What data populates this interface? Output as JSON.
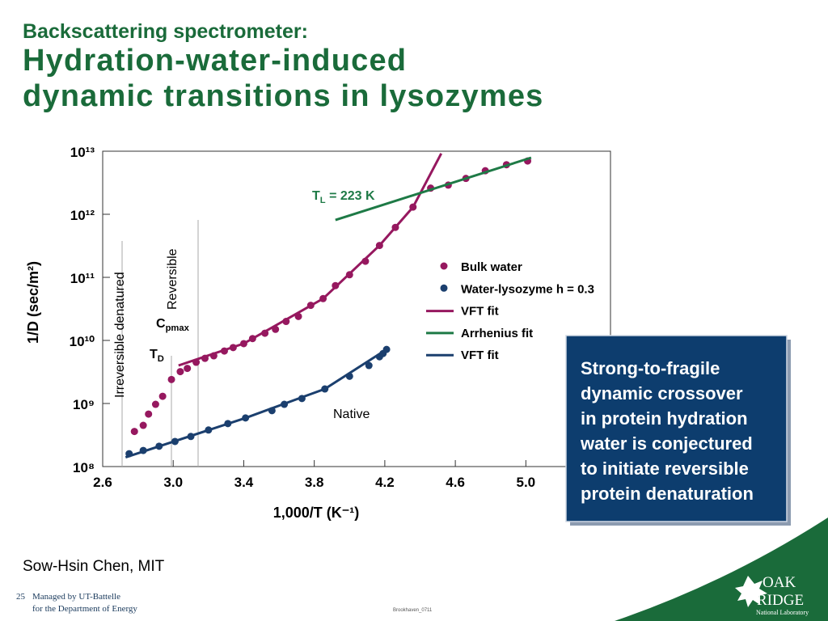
{
  "header": {
    "kicker": "Backscattering spectrometer:",
    "title_lines": [
      "Hydration-water-induced",
      "dynamic transitions in lysozymes"
    ]
  },
  "chart_data": {
    "type": "scatter",
    "log_y": true,
    "grid": false,
    "xlabel": "1,000/T (K⁻¹)",
    "ylabel": "1/D (sec/m²)",
    "xlim": [
      2.6,
      5.48
    ],
    "ylim": [
      100000000.0,
      10000000000000.0
    ],
    "xticks": [
      2.6,
      {
        "value": 3,
        "label": "3.0"
      },
      3.4,
      3.8,
      4.2,
      4.6,
      {
        "value": 5,
        "label": "5.0"
      }
    ],
    "yticks": [
      {
        "value": 100000000.0,
        "label": "10⁸"
      },
      {
        "value": 1000000000.0,
        "label": "10⁹"
      },
      {
        "value": 10000000000.0,
        "label": "10¹⁰"
      },
      {
        "value": 100000000000.0,
        "label": "10¹¹"
      },
      {
        "value": 1000000000000.0,
        "label": "10¹²"
      },
      {
        "value": 10000000000000.0,
        "label": "10¹³"
      }
    ],
    "legend": "right",
    "series": [
      {
        "name": "Bulk water",
        "color": "#96185f",
        "mode": "markers",
        "x": [
          2.78,
          2.83,
          2.86,
          2.9,
          2.94,
          2.99,
          3.04,
          3.08,
          3.13,
          3.18,
          3.23,
          3.29,
          3.34,
          3.4,
          3.45,
          3.52,
          3.58,
          3.64,
          3.71,
          3.78,
          3.85,
          3.92,
          4.0,
          4.09,
          4.17,
          4.26,
          4.36,
          4.46,
          4.56,
          4.66,
          4.77,
          4.89,
          5.01
        ],
        "values": [
          360000000.0,
          450000000.0,
          680000000.0,
          970000000.0,
          1300000000.0,
          2400000000.0,
          3200000000.0,
          3600000000.0,
          4500000000.0,
          5200000000.0,
          5700000000.0,
          6800000000.0,
          7700000000.0,
          8900000000.0,
          10700000000.0,
          13000000000.0,
          15000000000.0,
          20000000000.0,
          24000000000.0,
          36000000000.0,
          46000000000.0,
          74000000000.0,
          110000000000.0,
          180000000000.0,
          320000000000.0,
          620000000000.0,
          1300000000000.0,
          2600000000000.0,
          2900000000000.0,
          3700000000000.0,
          4900000000000.0,
          6100000000000.0,
          7000000000000.0
        ]
      },
      {
        "name": "Water-lysozyme h = 0.3",
        "color": "#1b3f6e",
        "mode": "markers",
        "x": [
          2.75,
          2.83,
          2.92,
          3.01,
          3.1,
          3.2,
          3.31,
          3.41,
          3.56,
          3.63,
          3.73,
          3.86,
          4.0,
          4.11,
          4.17,
          4.19,
          4.21
        ],
        "values": [
          160000000.0,
          180000000.0,
          210000000.0,
          250000000.0,
          300000000.0,
          380000000.0,
          480000000.0,
          590000000.0,
          770000000.0,
          970000000.0,
          1200000000.0,
          1700000000.0,
          2700000000.0,
          4000000000.0,
          5500000000.0,
          6200000000.0,
          7200000000.0
        ]
      },
      {
        "name": "VFT fit",
        "color": "#96185f",
        "mode": "lines",
        "x": [
          3.03,
          3.4,
          3.85,
          4.17,
          4.36,
          4.52
        ],
        "values": [
          4000000000.0,
          8900000000.0,
          46000000000.0,
          320000000000.0,
          1300000000000.0,
          9200000000000.0
        ]
      },
      {
        "name": "Arrhenius fit",
        "color": "#1e7a46",
        "mode": "lines",
        "x": [
          3.92,
          5.03
        ],
        "values": [
          810000000000.0,
          7900000000000.0
        ]
      },
      {
        "name": "VFT fit",
        "color": "#1b3f6e",
        "mode": "lines",
        "x": [
          2.73,
          3.41,
          3.86,
          4.21
        ],
        "values": [
          140000000.0,
          590000000.0,
          1700000000.0,
          7200000000.0
        ]
      }
    ],
    "annotations": [
      {
        "text": "T",
        "subscript": "L",
        "suffix": " = 223 K",
        "color": "#1e7a46"
      },
      {
        "text": "C",
        "subscript": "pmax"
      },
      {
        "text": "T",
        "subscript": "D"
      },
      {
        "text": "Reversible"
      },
      {
        "text": "Irreversible  denatured"
      },
      {
        "text": "Native"
      }
    ]
  },
  "callout": {
    "lines": [
      "Strong-to-fragile",
      "dynamic crossover",
      "in protein hydration",
      "water is conjectured",
      "to initiate reversible",
      "protein denaturation"
    ]
  },
  "credit": "Sow-Hsin Chen, MIT",
  "footer": {
    "page": "25",
    "lines": [
      "Managed by UT-Battelle",
      "for the Department of Energy"
    ],
    "code": "Brookhaven_0711",
    "logo": {
      "word1": "OAK",
      "word2": "RIDGE",
      "subtitle": "National Laboratory"
    }
  }
}
